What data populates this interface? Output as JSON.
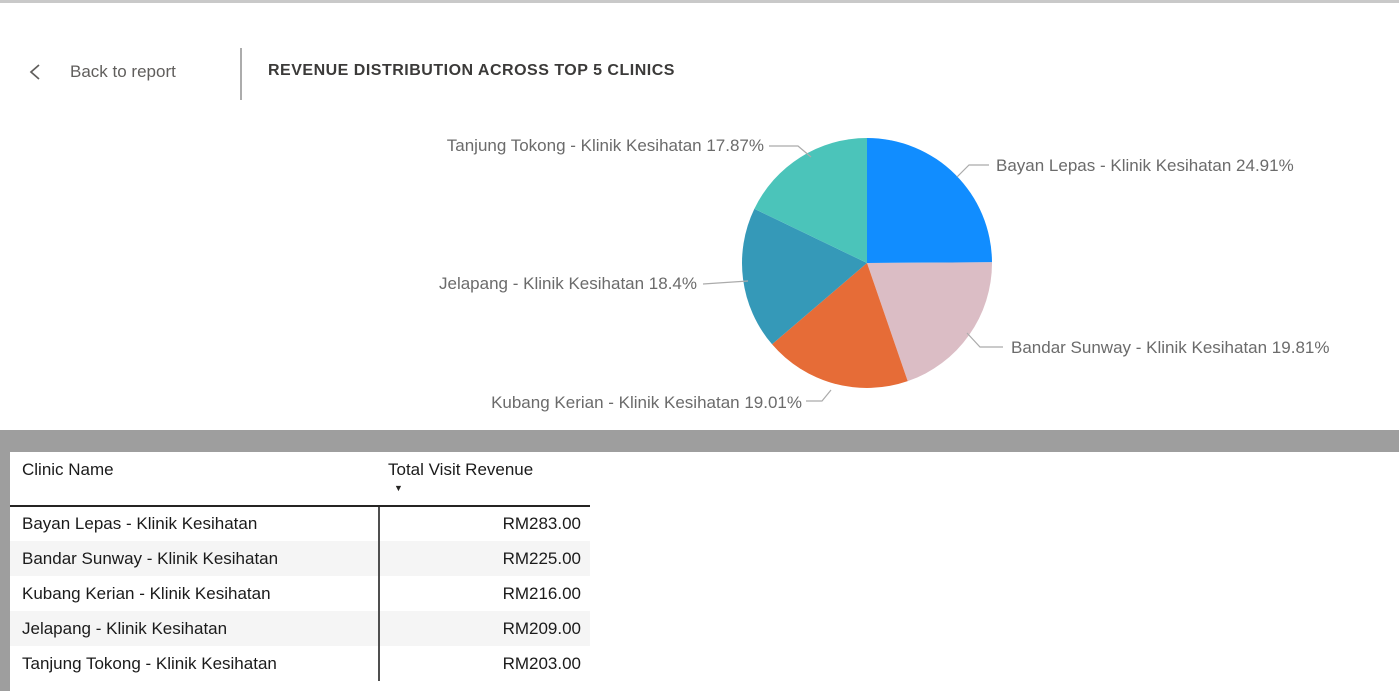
{
  "header": {
    "back_label": "Back to report",
    "title": "REVENUE DISTRIBUTION ACROSS TOP 5 CLINICS"
  },
  "chart_data": {
    "type": "pie",
    "title": "REVENUE DISTRIBUTION ACROSS TOP 5 CLINICS",
    "direction": "clockwise",
    "start_angle_deg": 0,
    "legend_position": "none",
    "slices": [
      {
        "name": "Bayan Lepas - Klinik Kesihatan",
        "percent": 24.91,
        "display_label": "Bayan Lepas - Klinik Kesihatan 24.91%",
        "color": "#118DFF"
      },
      {
        "name": "Bandar Sunway - Klinik Kesihatan",
        "percent": 19.81,
        "display_label": "Bandar Sunway - Klinik Kesihatan 19.81%",
        "color": "#DBBDC5"
      },
      {
        "name": "Kubang Kerian - Klinik Kesihatan",
        "percent": 19.01,
        "display_label": "Kubang Kerian - Klinik Kesihatan 19.01%",
        "color": "#E66C37"
      },
      {
        "name": "Jelapang - Klinik Kesihatan",
        "percent": 18.4,
        "display_label": "Jelapang - Klinik Kesihatan 18.4%",
        "color": "#3599B8"
      },
      {
        "name": "Tanjung Tokong - Klinik Kesihatan",
        "percent": 17.87,
        "display_label": "Tanjung Tokong - Klinik Kesihatan 17.87%",
        "color": "#4BC4BA"
      }
    ]
  },
  "table": {
    "columns": [
      {
        "label": "Clinic Name",
        "sorted": null
      },
      {
        "label": "Total Visit Revenue",
        "sorted": "desc"
      }
    ],
    "sort_icon": "▼",
    "rows": [
      {
        "clinic": "Bayan Lepas - Klinik Kesihatan",
        "revenue": "RM283.00"
      },
      {
        "clinic": "Bandar Sunway - Klinik Kesihatan",
        "revenue": "RM225.00"
      },
      {
        "clinic": "Kubang Kerian - Klinik Kesihatan",
        "revenue": "RM216.00"
      },
      {
        "clinic": "Jelapang - Klinik Kesihatan",
        "revenue": "RM209.00"
      },
      {
        "clinic": "Tanjung Tokong - Klinik Kesihatan",
        "revenue": "RM203.00"
      }
    ]
  },
  "colors": {
    "accent_blue": "#118DFF",
    "gray_band": "#9E9E9E",
    "label_gray": "#6B6B6B",
    "leader_line": "#ABABAB",
    "header_text": "#3B3A39"
  }
}
